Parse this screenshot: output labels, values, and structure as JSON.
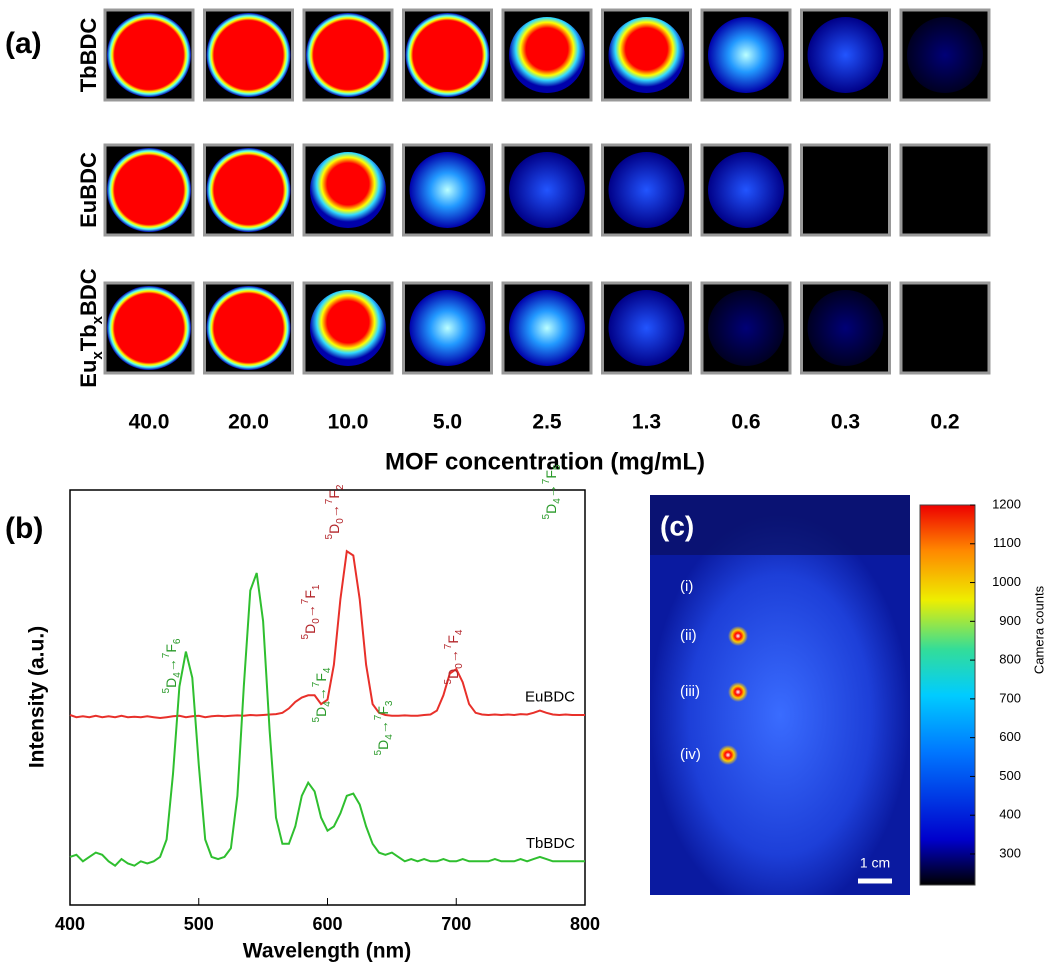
{
  "panel_a": {
    "label": "(a)",
    "rows": [
      [
        "TbBDC"
      ],
      [
        "EuBDC"
      ],
      [
        "Eu",
        "x",
        "Tb",
        "x",
        "BDC"
      ]
    ],
    "concentrations": [
      "40.0",
      "20.0",
      "10.0",
      "5.0",
      "2.5",
      "1.3",
      "0.6",
      "0.3",
      "0.2"
    ],
    "xlabel": "MOF concentration (mg/mL)"
  },
  "chart_data": {
    "type": "line",
    "label": "(b)",
    "xlabel": "Wavelength (nm)",
    "ylabel": "Intensity (a.u.)",
    "xlim": [
      400,
      800
    ],
    "xticks": [
      400,
      500,
      600,
      700,
      800
    ],
    "ylim": [
      10,
      105
    ],
    "x": [
      400,
      405,
      410,
      415,
      420,
      425,
      430,
      435,
      440,
      445,
      450,
      455,
      460,
      465,
      470,
      475,
      480,
      485,
      490,
      495,
      500,
      505,
      510,
      515,
      520,
      525,
      530,
      535,
      540,
      545,
      550,
      555,
      560,
      565,
      570,
      575,
      580,
      585,
      590,
      595,
      600,
      605,
      610,
      615,
      620,
      625,
      630,
      635,
      640,
      645,
      650,
      655,
      660,
      665,
      670,
      675,
      680,
      685,
      690,
      695,
      700,
      705,
      710,
      715,
      720,
      725,
      730,
      735,
      740,
      745,
      750,
      755,
      760,
      765,
      770,
      775,
      780,
      785,
      790,
      795,
      800
    ],
    "series": [
      {
        "name": "EuBDC",
        "color": "#e8302a",
        "values": [
          53.5,
          53,
          53.2,
          53,
          53.3,
          53,
          53.2,
          53,
          53.3,
          53,
          53.1,
          53,
          53.2,
          53,
          52.8,
          53,
          53.2,
          53.3,
          53,
          53.2,
          53.3,
          53,
          53.2,
          53.3,
          53.2,
          53.3,
          53.4,
          53.3,
          53.5,
          53.4,
          53.5,
          53.6,
          53.7,
          54,
          55,
          56.5,
          57.5,
          58,
          58,
          56,
          57,
          65,
          80,
          91,
          90,
          80,
          65,
          56,
          54,
          53.5,
          53.3,
          53.3,
          53.4,
          53.3,
          53.3,
          53.5,
          53.6,
          54.5,
          58,
          63,
          64,
          61,
          56,
          54,
          53.6,
          53.5,
          53.6,
          53.5,
          53.6,
          53.5,
          53.7,
          53.6,
          54,
          54.5,
          54,
          53.6,
          53.5,
          53.6,
          53.5,
          53.5,
          53.5
        ]
      },
      {
        "name": "TbBDC",
        "color": "#2fbf2f",
        "values": [
          21,
          21.5,
          20,
          21,
          22,
          21.5,
          20,
          19,
          20.5,
          19.5,
          19,
          20,
          19.5,
          20,
          21,
          25,
          40,
          60,
          68,
          62,
          42,
          25,
          21,
          20.5,
          21,
          23,
          35,
          60,
          82,
          86,
          75,
          50,
          30,
          24,
          24,
          28,
          35,
          38,
          36,
          30,
          27,
          28,
          31,
          35,
          35.5,
          33,
          28,
          24,
          22,
          21.5,
          22,
          21,
          20,
          20.5,
          20,
          20.5,
          20,
          20,
          20.5,
          20,
          20,
          20.5,
          20,
          20,
          20,
          20,
          20.5,
          20,
          20,
          20,
          20.5,
          20,
          20.5,
          21,
          20.5,
          20,
          20,
          20,
          20,
          20,
          20
        ]
      }
    ],
    "annotations": [
      {
        "text": [
          "5",
          "D",
          "4",
          "→",
          "7",
          "F",
          "6"
        ],
        "color": "#2a9a2a"
      },
      {
        "text": [
          "5",
          "D",
          "4",
          "→",
          "7",
          "F",
          "5"
        ],
        "color": "#2a9a2a"
      },
      {
        "text": [
          "5",
          "D",
          "0",
          "→",
          "7",
          "F",
          "1"
        ],
        "color": "#b3262b"
      },
      {
        "text": [
          "5",
          "D",
          "0",
          "→",
          "7",
          "F",
          "2"
        ],
        "color": "#b3262b"
      },
      {
        "text": [
          "5",
          "D",
          "0",
          "→",
          "7",
          "F",
          "4"
        ],
        "color": "#b3262b"
      },
      {
        "text": [
          "5",
          "D",
          "4",
          "→",
          "7",
          "F",
          "4"
        ],
        "color": "#2a9a2a"
      },
      {
        "text": [
          "5",
          "D",
          "4",
          "→",
          "7",
          "F",
          "3"
        ],
        "color": "#2a9a2a"
      }
    ]
  },
  "panel_c": {
    "label": "(c)",
    "spots": [
      "(i)",
      "(ii)",
      "(iii)",
      "(iv)"
    ],
    "scale_bar": "1 cm",
    "colorbar": {
      "label": "Camera counts",
      "lim": [
        220,
        1200
      ],
      "ticks": [
        300,
        400,
        500,
        600,
        700,
        800,
        900,
        1000,
        1100,
        1200
      ]
    }
  }
}
